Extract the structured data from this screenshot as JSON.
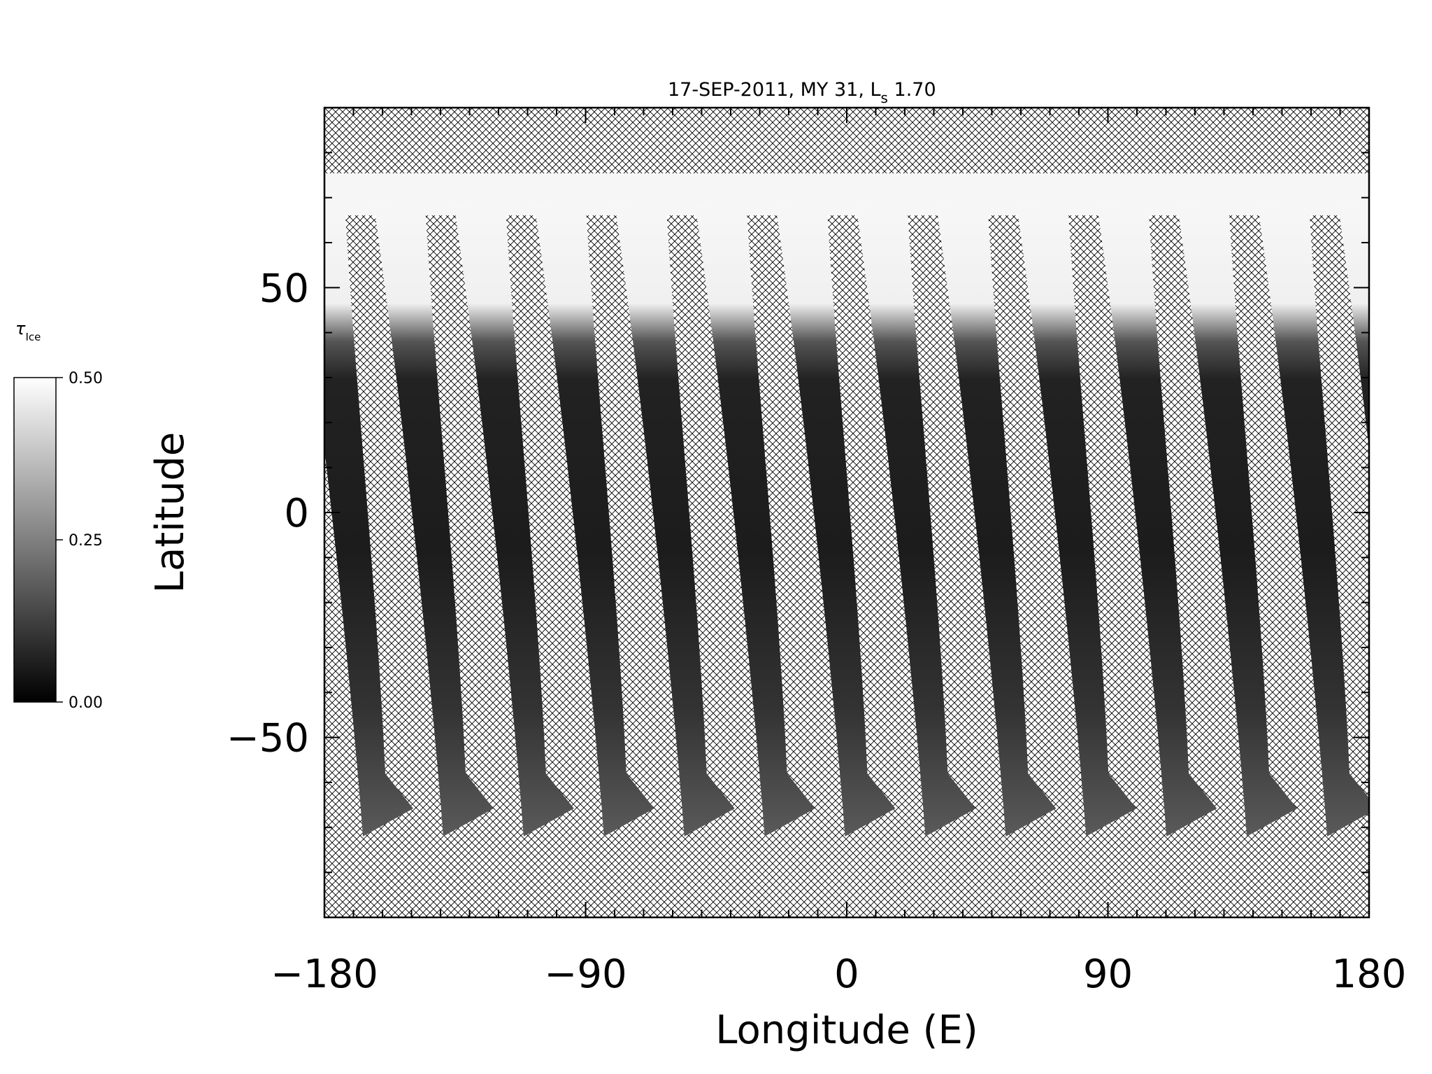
{
  "chart_data": {
    "type": "heatmap",
    "title_main": "17-SEP-2011, MY 31,  L",
    "title_sub": "s",
    "title_value": " 1.70",
    "xlabel": "Longitude (E)",
    "ylabel": "Latitude",
    "xlim": [
      -180,
      180
    ],
    "ylim": [
      -90,
      90
    ],
    "x_major_ticks": [
      -180,
      -90,
      0,
      90,
      180
    ],
    "x_minor_step": 10,
    "y_major_ticks": [
      50,
      0,
      -50
    ],
    "y_minor_step": 10,
    "y_major_tick_labels": [
      "50",
      "0",
      "−50"
    ],
    "x_major_tick_labels": [
      "−180",
      "−90",
      "0",
      "90",
      "180"
    ],
    "colorbar": {
      "label": "τ",
      "label_sub": "Ice",
      "ticks": [
        "0.50",
        "0.25",
        "0.00"
      ],
      "range": [
        0.0,
        0.5
      ],
      "colormap": "grayscale"
    },
    "no_data_pattern": "crosshatch",
    "colors": {
      "low": "#000000",
      "high": "#ffffff",
      "hatch": "#000000"
    }
  }
}
